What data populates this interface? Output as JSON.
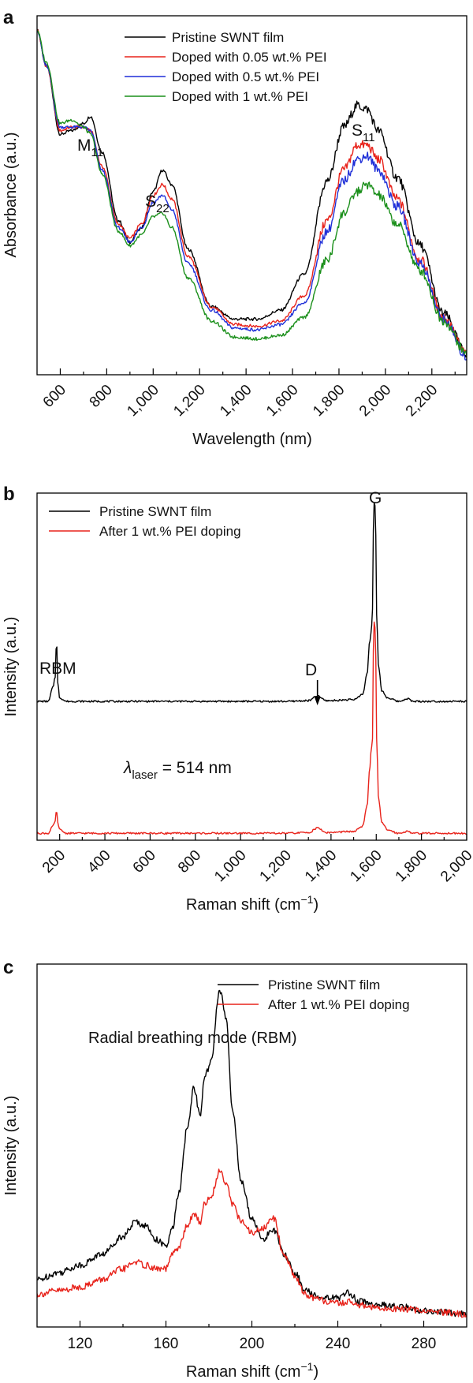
{
  "chart_data": [
    {
      "panel": "a",
      "type": "line",
      "xlabel": "Wavelength (nm)",
      "ylabel": "Absorbance (a.u.)",
      "xlim": [
        500,
        2350
      ],
      "ylim": [
        0,
        1.0
      ],
      "xticks": [
        600,
        800,
        1000,
        1200,
        1400,
        1600,
        1800,
        2000,
        2200
      ],
      "xtick_labels": [
        "600",
        "800",
        "1,000",
        "1,200",
        "1,400",
        "1,600",
        "1,800",
        "2,000",
        "2,200"
      ],
      "series": [
        {
          "name": "Pristine SWNT film",
          "color": "#000000",
          "x": [
            500,
            540,
            600,
            650,
            700,
            730,
            780,
            850,
            900,
            950,
            1000,
            1040,
            1080,
            1150,
            1250,
            1350,
            1450,
            1550,
            1650,
            1750,
            1820,
            1880,
            1920,
            1970,
            2050,
            2150,
            2250,
            2350
          ],
          "y": [
            0.96,
            0.86,
            0.67,
            0.68,
            0.7,
            0.72,
            0.62,
            0.43,
            0.37,
            0.41,
            0.51,
            0.57,
            0.53,
            0.35,
            0.19,
            0.155,
            0.155,
            0.18,
            0.28,
            0.54,
            0.69,
            0.75,
            0.74,
            0.68,
            0.55,
            0.36,
            0.17,
            0.06
          ]
        },
        {
          "name": "Doped with 0.05 wt.% PEI",
          "color": "#e8231b",
          "x": [
            500,
            540,
            600,
            650,
            700,
            730,
            780,
            850,
            900,
            950,
            1000,
            1040,
            1080,
            1150,
            1250,
            1350,
            1450,
            1550,
            1650,
            1750,
            1820,
            1880,
            1920,
            1970,
            2050,
            2150,
            2250,
            2350
          ],
          "y": [
            0.96,
            0.86,
            0.68,
            0.69,
            0.69,
            0.68,
            0.58,
            0.42,
            0.38,
            0.42,
            0.5,
            0.53,
            0.49,
            0.33,
            0.19,
            0.14,
            0.135,
            0.15,
            0.22,
            0.43,
            0.57,
            0.64,
            0.64,
            0.6,
            0.49,
            0.32,
            0.16,
            0.06
          ]
        },
        {
          "name": "Doped with 0.5 wt.% PEI",
          "color": "#1f2fd8",
          "x": [
            500,
            540,
            600,
            650,
            700,
            730,
            780,
            850,
            900,
            950,
            1000,
            1040,
            1080,
            1150,
            1250,
            1350,
            1450,
            1550,
            1650,
            1750,
            1820,
            1880,
            1920,
            1970,
            2050,
            2150,
            2250,
            2350
          ],
          "y": [
            0.96,
            0.86,
            0.69,
            0.69,
            0.69,
            0.68,
            0.57,
            0.41,
            0.37,
            0.41,
            0.48,
            0.5,
            0.46,
            0.31,
            0.18,
            0.13,
            0.125,
            0.14,
            0.2,
            0.4,
            0.54,
            0.6,
            0.61,
            0.57,
            0.47,
            0.31,
            0.155,
            0.05
          ]
        },
        {
          "name": "Doped with 1 wt.% PEI",
          "color": "#1a8f1a",
          "x": [
            500,
            540,
            600,
            650,
            700,
            730,
            780,
            850,
            900,
            950,
            1000,
            1040,
            1080,
            1150,
            1250,
            1350,
            1450,
            1550,
            1650,
            1750,
            1820,
            1880,
            1920,
            1970,
            2050,
            2150,
            2250,
            2350
          ],
          "y": [
            0.96,
            0.87,
            0.7,
            0.71,
            0.69,
            0.67,
            0.56,
            0.4,
            0.36,
            0.39,
            0.44,
            0.45,
            0.41,
            0.27,
            0.15,
            0.105,
            0.1,
            0.11,
            0.16,
            0.32,
            0.45,
            0.51,
            0.53,
            0.5,
            0.42,
            0.29,
            0.15,
            0.06
          ]
        }
      ],
      "annotations": [
        {
          "text": "M",
          "sub": "11",
          "x": 720,
          "y": 0.76
        },
        {
          "text": "S",
          "sub": "22",
          "x": 1010,
          "y": 0.61
        },
        {
          "text": "S",
          "sub": "11",
          "x": 1880,
          "y": 0.8
        }
      ]
    },
    {
      "panel": "b",
      "type": "line",
      "xlabel": "Raman shift (cm−1)",
      "ylabel": "Intensity (a.u.)",
      "xlim": [
        100,
        2000
      ],
      "ylim": [
        0,
        1.0
      ],
      "xticks": [
        200,
        400,
        600,
        800,
        1000,
        1200,
        1400,
        1600,
        1800,
        2000
      ],
      "xtick_labels": [
        "200",
        "400",
        "600",
        "800",
        "1,000",
        "1,200",
        "1,400",
        "1,600",
        "1,800",
        "2,000"
      ],
      "series": [
        {
          "name": "Pristine SWNT film",
          "color": "#000000",
          "x": [
            100,
            150,
            170,
            180,
            186,
            192,
            200,
            230,
            400,
            800,
            1200,
            1300,
            1340,
            1380,
            1500,
            1540,
            1560,
            1570,
            1578,
            1583,
            1589,
            1593,
            1597,
            1603,
            1610,
            1625,
            1650,
            1700,
            1740,
            1760,
            1800,
            2000
          ],
          "y": [
            0.4,
            0.4,
            0.44,
            0.47,
            0.58,
            0.45,
            0.41,
            0.4,
            0.4,
            0.4,
            0.4,
            0.402,
            0.415,
            0.402,
            0.405,
            0.42,
            0.48,
            0.57,
            0.6,
            0.66,
            0.96,
            0.99,
            0.9,
            0.62,
            0.5,
            0.43,
            0.41,
            0.4,
            0.408,
            0.4,
            0.4,
            0.4
          ]
        },
        {
          "name": "After 1 wt.% PEI doping",
          "color": "#e8231b",
          "x": [
            100,
            150,
            170,
            180,
            186,
            192,
            200,
            230,
            400,
            800,
            1200,
            1300,
            1340,
            1380,
            1500,
            1540,
            1560,
            1570,
            1578,
            1583,
            1589,
            1593,
            1597,
            1603,
            1610,
            1625,
            1650,
            1700,
            1740,
            1760,
            1800,
            2000
          ],
          "y": [
            0.02,
            0.02,
            0.04,
            0.055,
            0.085,
            0.05,
            0.03,
            0.02,
            0.02,
            0.02,
            0.02,
            0.022,
            0.035,
            0.022,
            0.025,
            0.04,
            0.1,
            0.2,
            0.26,
            0.29,
            0.62,
            0.64,
            0.55,
            0.26,
            0.12,
            0.05,
            0.03,
            0.02,
            0.026,
            0.02,
            0.02,
            0.02
          ]
        }
      ],
      "annotations": [
        {
          "text": "G",
          "x": 1592,
          "y": 1.02
        },
        {
          "text": "RBM",
          "x": 186,
          "y": 0.62
        },
        {
          "text": "D",
          "x": 1345,
          "y": 0.58
        },
        {
          "text": "λ",
          "sub": "laser",
          "tail": " = 514 nm",
          "x": 520,
          "y": 0.24
        }
      ]
    },
    {
      "panel": "c",
      "type": "line",
      "title": "Radial breathing mode (RBM)",
      "xlabel": "Raman shift (cm−1)",
      "ylabel": "Intensity (a.u.)",
      "xlim": [
        100,
        300
      ],
      "ylim": [
        0,
        1.0
      ],
      "xticks": [
        120,
        160,
        200,
        240,
        280
      ],
      "xtick_labels": [
        "120",
        "160",
        "200",
        "240",
        "280"
      ],
      "series": [
        {
          "name": "Pristine SWNT film",
          "color": "#000000",
          "x": [
            100,
            110,
            120,
            130,
            140,
            146,
            150,
            156,
            160,
            163,
            166,
            170,
            173,
            176,
            178,
            181,
            185,
            188,
            191,
            195,
            200,
            205,
            210,
            215,
            220,
            225,
            230,
            240,
            245,
            250,
            260,
            270,
            280,
            290,
            300
          ],
          "y": [
            0.13,
            0.15,
            0.17,
            0.2,
            0.25,
            0.29,
            0.28,
            0.24,
            0.22,
            0.27,
            0.37,
            0.55,
            0.66,
            0.58,
            0.69,
            0.73,
            0.93,
            0.85,
            0.6,
            0.4,
            0.3,
            0.24,
            0.27,
            0.2,
            0.15,
            0.1,
            0.085,
            0.08,
            0.095,
            0.07,
            0.06,
            0.055,
            0.045,
            0.04,
            0.035
          ]
        },
        {
          "name": "After 1 wt.% PEI doping",
          "color": "#e8231b",
          "x": [
            100,
            110,
            120,
            130,
            140,
            146,
            150,
            156,
            160,
            163,
            166,
            170,
            173,
            176,
            178,
            181,
            185,
            188,
            191,
            195,
            200,
            205,
            210,
            215,
            220,
            225,
            230,
            240,
            245,
            250,
            260,
            270,
            280,
            290,
            300
          ],
          "y": [
            0.09,
            0.1,
            0.11,
            0.13,
            0.16,
            0.18,
            0.17,
            0.16,
            0.16,
            0.2,
            0.22,
            0.28,
            0.31,
            0.29,
            0.34,
            0.36,
            0.43,
            0.4,
            0.34,
            0.29,
            0.26,
            0.27,
            0.3,
            0.2,
            0.14,
            0.09,
            0.075,
            0.065,
            0.07,
            0.06,
            0.05,
            0.05,
            0.045,
            0.04,
            0.035
          ]
        }
      ]
    }
  ]
}
